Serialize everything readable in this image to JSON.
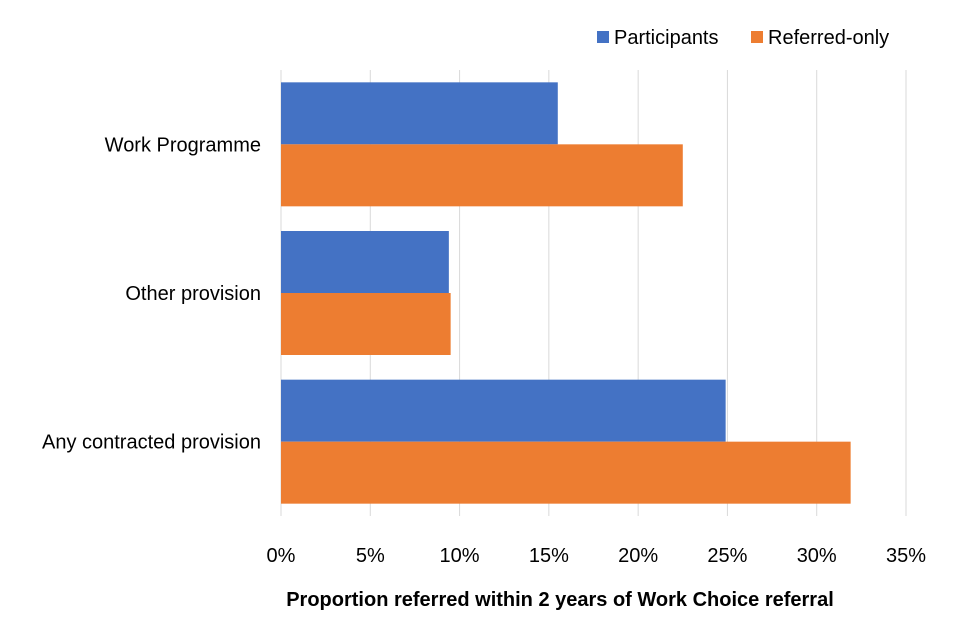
{
  "chart_data": {
    "type": "bar",
    "orientation": "horizontal",
    "categories": [
      "Work Programme",
      "Other provision",
      "Any contracted provision"
    ],
    "series": [
      {
        "name": "Participants",
        "color": "#4472c4",
        "values": [
          15.5,
          9.4,
          24.9
        ]
      },
      {
        "name": "Referred-only",
        "color": "#ed7d31",
        "values": [
          22.5,
          9.5,
          31.9
        ]
      }
    ],
    "xlabel": "Proportion referred within 2 years of Work Choice referral",
    "ylabel": "",
    "xlim": [
      0,
      35
    ],
    "x_ticks": [
      "0%",
      "5%",
      "10%",
      "15%",
      "20%",
      "25%",
      "30%",
      "35%"
    ],
    "x_tick_values": [
      0,
      5,
      10,
      15,
      20,
      25,
      30,
      35
    ],
    "grid": true,
    "legend_position": "top-right"
  }
}
